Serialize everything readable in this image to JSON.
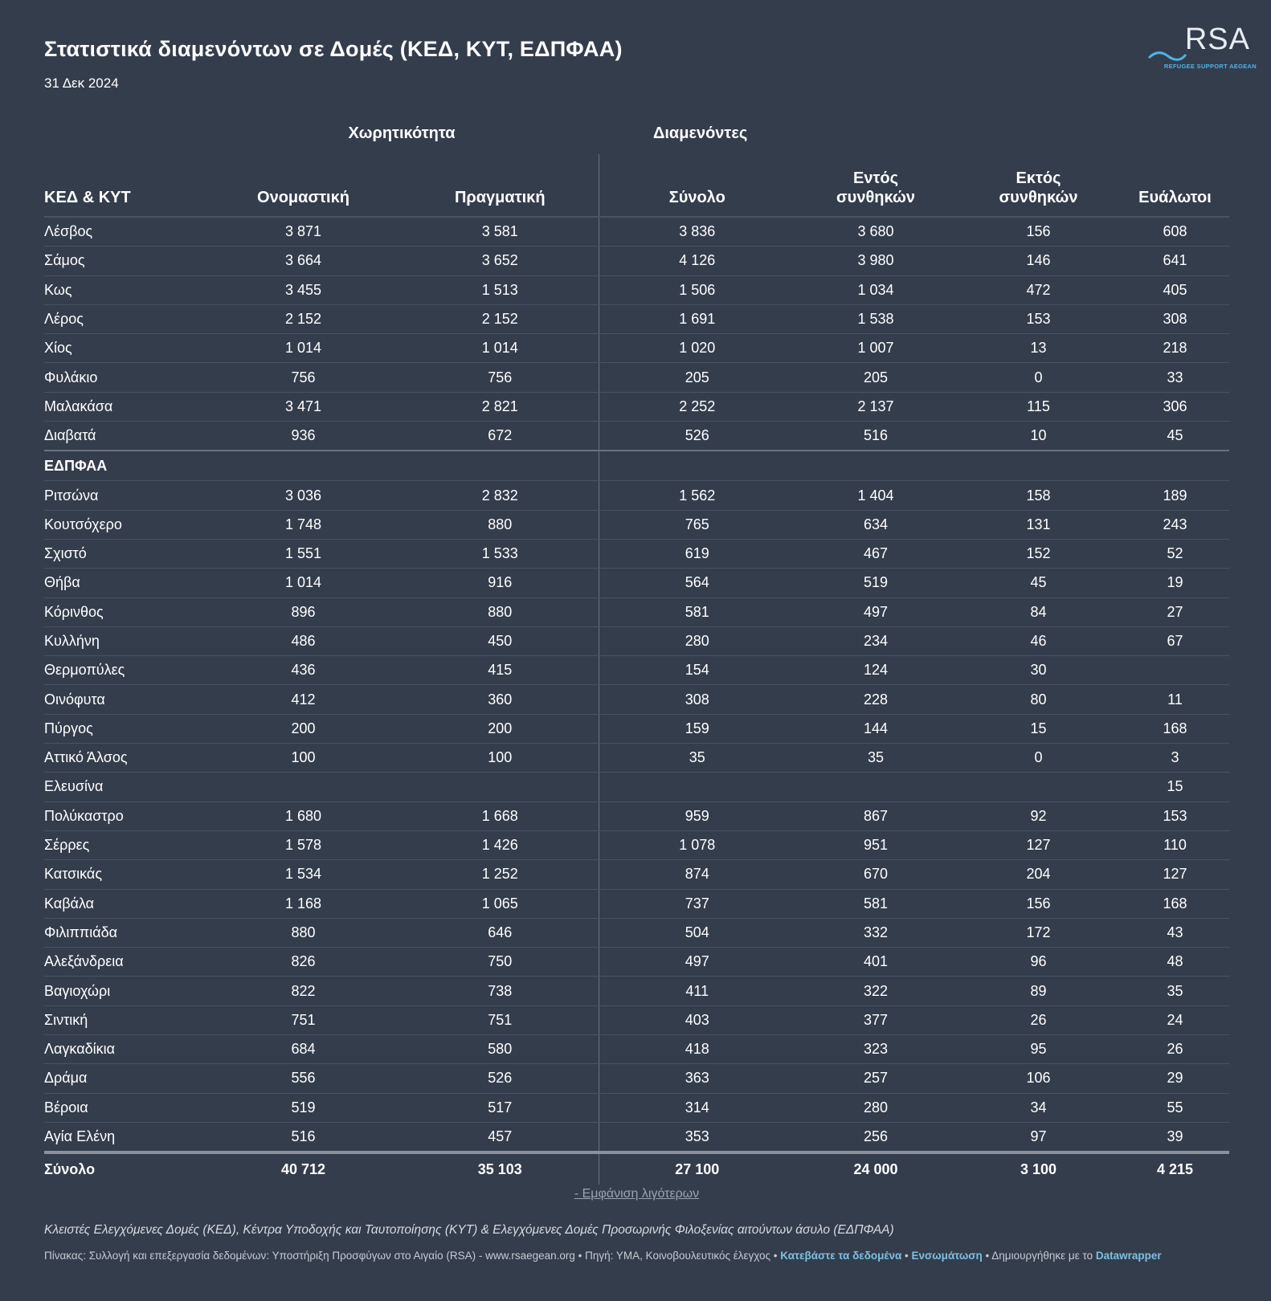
{
  "title": "Στατιστικά διαμενόντων σε Δομές (ΚΕΔ, ΚΥΤ, ΕΔΠΦΑΑ)",
  "subtitle": "31 Δεκ 2024",
  "logo": {
    "text": "RSA",
    "sub": "REFUGEE SUPPORT AEGEAN"
  },
  "groups": {
    "capacity": "Χωρητικότητα",
    "residents": "Διαμενόντες"
  },
  "headers": [
    "ΚΕΔ & ΚΥΤ",
    "Ονομαστική",
    "Πραγματική",
    "Σύνολο",
    "Εντός\nσυνθηκών",
    "Εκτός\nσυνθηκών",
    "Ευάλωτοι"
  ],
  "rows_ked": [
    [
      "Λέσβος",
      "3 871",
      "3 581",
      "3 836",
      "3 680",
      "156",
      "608"
    ],
    [
      "Σάμος",
      "3 664",
      "3 652",
      "4 126",
      "3 980",
      "146",
      "641"
    ],
    [
      "Κως",
      "3 455",
      "1 513",
      "1 506",
      "1 034",
      "472",
      "405"
    ],
    [
      "Λέρος",
      "2 152",
      "2 152",
      "1 691",
      "1 538",
      "153",
      "308"
    ],
    [
      "Χίος",
      "1 014",
      "1 014",
      "1 020",
      "1 007",
      "13",
      "218"
    ],
    [
      "Φυλάκιο",
      "756",
      "756",
      "205",
      "205",
      "0",
      "33"
    ],
    [
      "Μαλακάσα",
      "3 471",
      "2 821",
      "2 252",
      "2 137",
      "115",
      "306"
    ],
    [
      "Διαβατά",
      "936",
      "672",
      "526",
      "516",
      "10",
      "45"
    ]
  ],
  "section_label": "ΕΔΠΦΑΑ",
  "rows_edpfaa": [
    [
      "Ριτσώνα",
      "3 036",
      "2 832",
      "1 562",
      "1 404",
      "158",
      "189"
    ],
    [
      "Κουτσόχερο",
      "1 748",
      "880",
      "765",
      "634",
      "131",
      "243"
    ],
    [
      "Σχιστό",
      "1 551",
      "1 533",
      "619",
      "467",
      "152",
      "52"
    ],
    [
      "Θήβα",
      "1 014",
      "916",
      "564",
      "519",
      "45",
      "19"
    ],
    [
      "Κόρινθος",
      "896",
      "880",
      "581",
      "497",
      "84",
      "27"
    ],
    [
      "Κυλλήνη",
      "486",
      "450",
      "280",
      "234",
      "46",
      "67"
    ],
    [
      "Θερμοπύλες",
      "436",
      "415",
      "154",
      "124",
      "30",
      ""
    ],
    [
      "Οινόφυτα",
      "412",
      "360",
      "308",
      "228",
      "80",
      "11"
    ],
    [
      "Πύργος",
      "200",
      "200",
      "159",
      "144",
      "15",
      "168"
    ],
    [
      "Αττικό Άλσος",
      "100",
      "100",
      "35",
      "35",
      "0",
      "3"
    ],
    [
      "Ελευσίνα",
      "",
      "",
      "",
      "",
      "",
      "15"
    ],
    [
      "Πολύκαστρο",
      "1 680",
      "1 668",
      "959",
      "867",
      "92",
      "153"
    ],
    [
      "Σέρρες",
      "1 578",
      "1 426",
      "1 078",
      "951",
      "127",
      "110"
    ],
    [
      "Κατσικάς",
      "1 534",
      "1 252",
      "874",
      "670",
      "204",
      "127"
    ],
    [
      "Καβάλα",
      "1 168",
      "1 065",
      "737",
      "581",
      "156",
      "168"
    ],
    [
      "Φιλιππιάδα",
      "880",
      "646",
      "504",
      "332",
      "172",
      "43"
    ],
    [
      "Αλεξάνδρεια",
      "826",
      "750",
      "497",
      "401",
      "96",
      "48"
    ],
    [
      "Βαγιοχώρι",
      "822",
      "738",
      "411",
      "322",
      "89",
      "35"
    ],
    [
      "Σιντική",
      "751",
      "751",
      "403",
      "377",
      "26",
      "24"
    ],
    [
      "Λαγκαδίκια",
      "684",
      "580",
      "418",
      "323",
      "95",
      "26"
    ],
    [
      "Δράμα",
      "556",
      "526",
      "363",
      "257",
      "106",
      "29"
    ],
    [
      "Βέροια",
      "519",
      "517",
      "314",
      "280",
      "34",
      "55"
    ],
    [
      "Αγία Ελένη",
      "516",
      "457",
      "353",
      "256",
      "97",
      "39"
    ]
  ],
  "total": [
    "Σύνολο",
    "40 712",
    "35 103",
    "27 100",
    "24 000",
    "3 100",
    "4 215"
  ],
  "show_less": "- Εμφάνιση λιγότερων",
  "notes": "Κλειστές Ελεγχόμενες Δομές (ΚΕΔ), Κέντρα Υποδοχής και Ταυτοποίησης (ΚΥΤ) & Ελεγχόμενες Δομές Προσωρινής Φιλοξενίας αιτούντων άσυλο (ΕΔΠΦΑΑ)",
  "footer": {
    "text1": "Πίνακας: Συλλογή και επεξεργασία δεδομένων: Υποστήριξη Προσφύγων στο Αιγαίο (RSA) - www.rsaegean.org • Πηγή: ΥΜΑ, Κοινοβουλευτικός έλεγχος • ",
    "download": "Κατεβάστε τα δεδομένα",
    "sep": " • ",
    "embed": "Ενσωμάτωση",
    "text2": " • Δημιουργήθηκε με το ",
    "datawrapper": "Datawrapper"
  },
  "colors": {
    "background": "#343d4c",
    "text": "#ffffff",
    "link": "#7cc0e3",
    "logo_accent": "#4fb3e8"
  }
}
